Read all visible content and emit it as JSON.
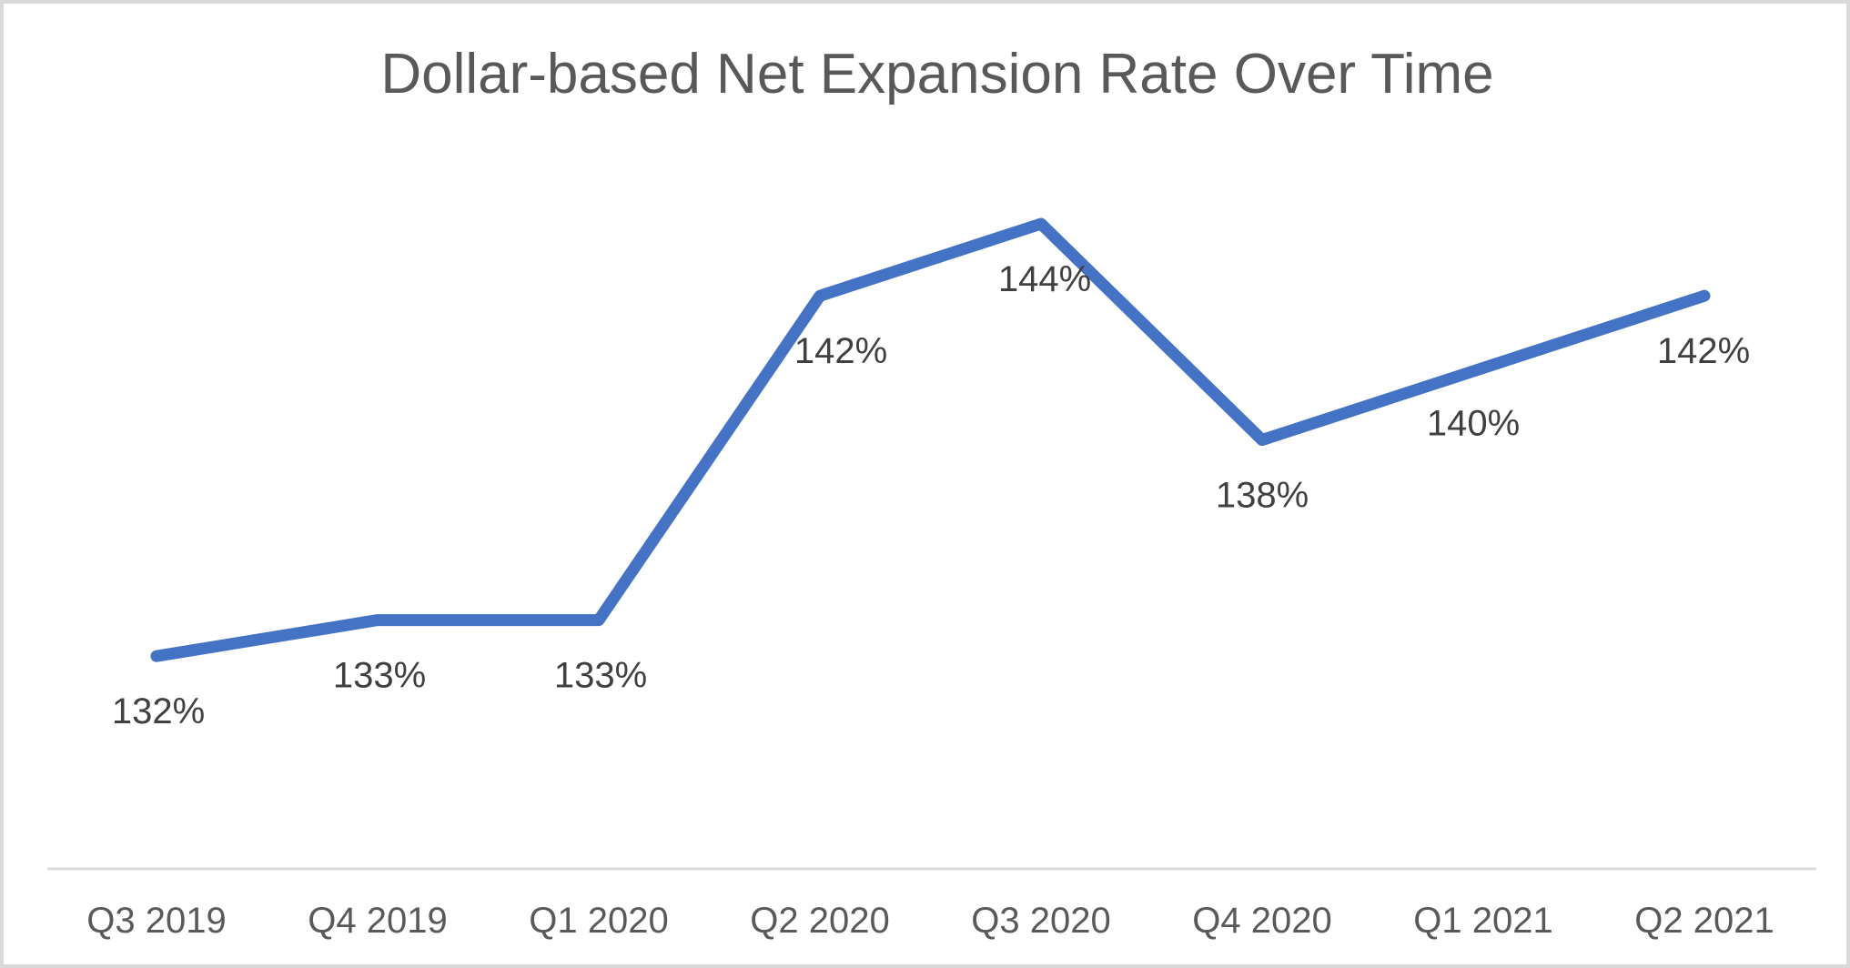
{
  "chart_data": {
    "type": "line",
    "title": "Dollar-based Net Expansion Rate Over Time",
    "categories": [
      "Q3 2019",
      "Q4 2019",
      "Q1 2020",
      "Q2 2020",
      "Q3 2020",
      "Q4 2020",
      "Q1 2021",
      "Q2 2021"
    ],
    "values": [
      132,
      133,
      133,
      142,
      144,
      138,
      140,
      142
    ],
    "data_labels": [
      "132%",
      "133%",
      "133%",
      "142%",
      "144%",
      "138%",
      "140%",
      "142%"
    ],
    "xlabel": "",
    "ylabel": "",
    "value_unit": "%",
    "ylim": [
      129,
      147
    ],
    "grid": false,
    "legend_position": "none",
    "value_axis_visible": false,
    "colors": {
      "line": "#4472C4",
      "title_text": "#595959",
      "data_label_text": "#404040",
      "axis_label_text": "#595959",
      "axis_line": "#D9D9D9",
      "border": "#D9D9D9",
      "background": "#FFFFFF"
    }
  }
}
